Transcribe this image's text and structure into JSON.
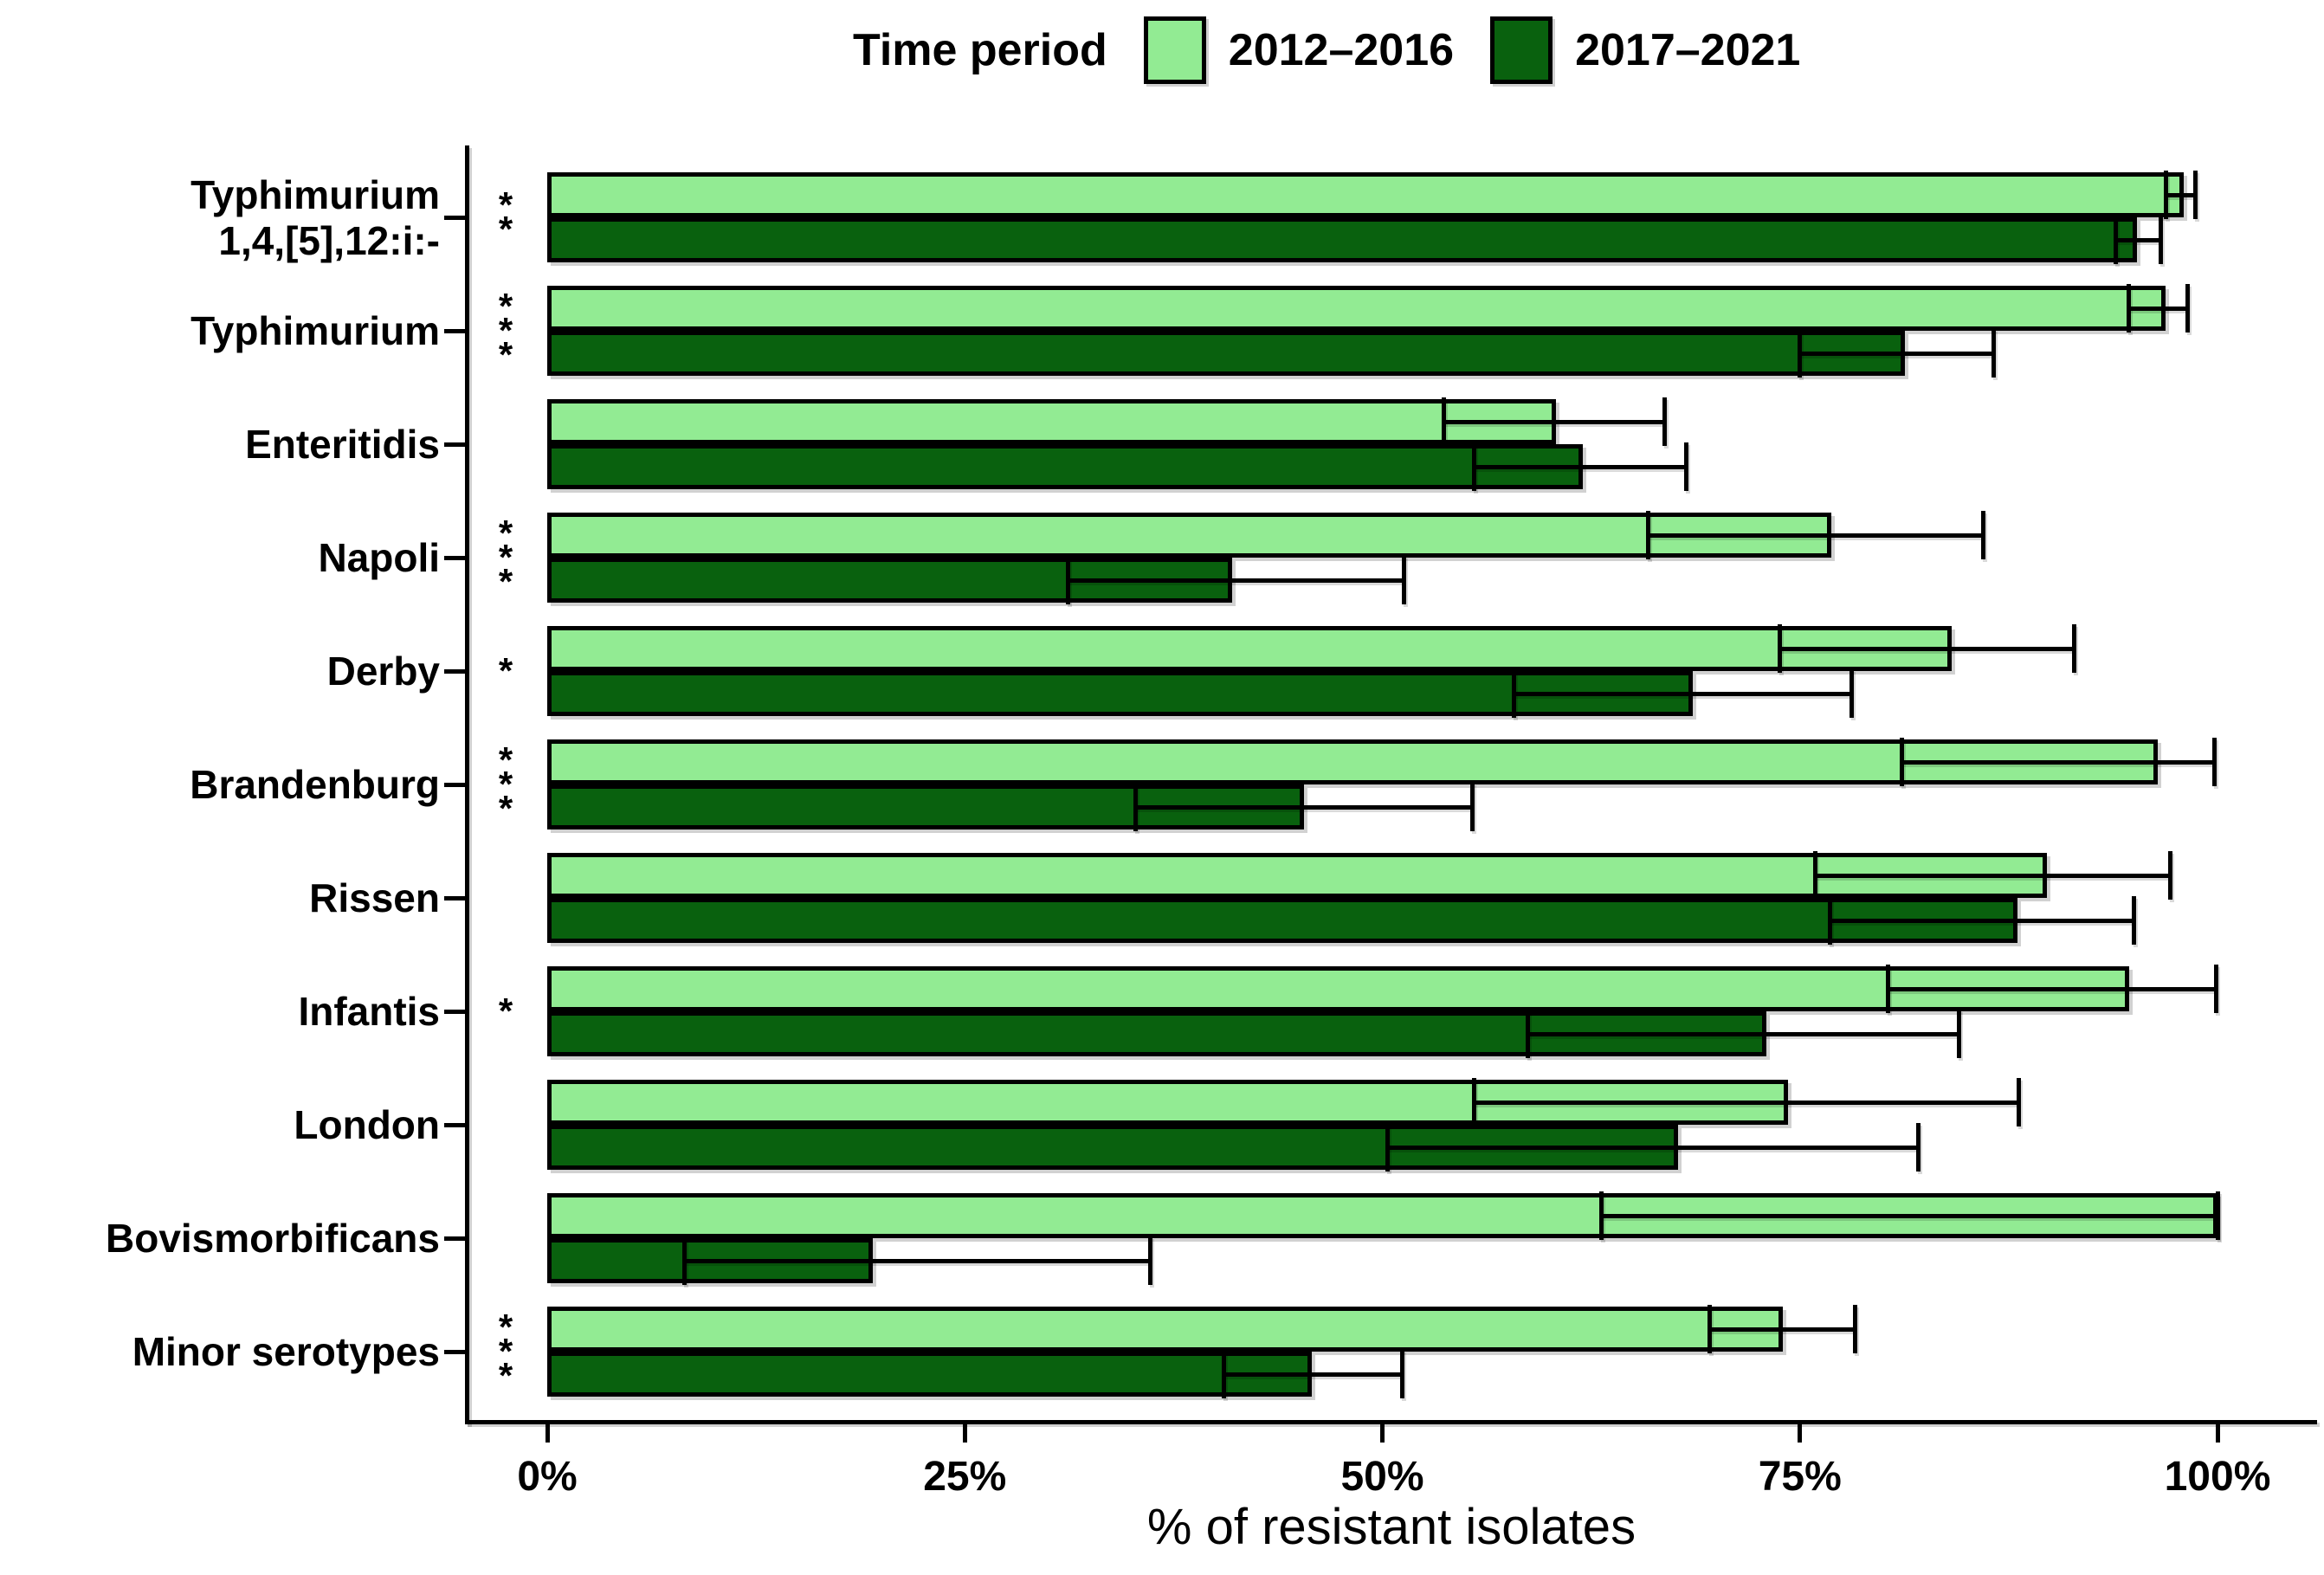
{
  "chart_data": {
    "type": "bar",
    "orientation": "horizontal",
    "legend_title": "Time period",
    "xlabel": "% of resistant isolates",
    "xlim": [
      0,
      100
    ],
    "x_ticks": [
      "0%",
      "25%",
      "50%",
      "75%",
      "100%"
    ],
    "x_tick_values": [
      0,
      25,
      50,
      75,
      100
    ],
    "grid": false,
    "legend_position": "top",
    "categories": [
      {
        "label": "Typhimurium\n1,4,[5],12:i:-",
        "significance": "**"
      },
      {
        "label": "Typhimurium",
        "significance": "***"
      },
      {
        "label": "Enteritidis",
        "significance": ""
      },
      {
        "label": "Napoli",
        "significance": "***"
      },
      {
        "label": "Derby",
        "significance": "*"
      },
      {
        "label": "Brandenburg",
        "significance": "***"
      },
      {
        "label": "Rissen",
        "significance": ""
      },
      {
        "label": "Infantis",
        "significance": "*"
      },
      {
        "label": "London",
        "significance": ""
      },
      {
        "label": "Bovismorbificans",
        "significance": ""
      },
      {
        "label": "Minor serotypes",
        "significance": "***"
      }
    ],
    "series": [
      {
        "name": "2012–2016",
        "color": "#92eb93",
        "values": [
          98.0,
          96.9,
          60.4,
          76.9,
          84.1,
          96.4,
          89.8,
          94.7,
          74.3,
          100.0,
          74.0
        ],
        "ci_low": [
          96.9,
          94.7,
          53.7,
          65.9,
          73.8,
          81.1,
          75.9,
          80.3,
          55.5,
          63.1,
          69.6
        ],
        "ci_high": [
          98.7,
          98.2,
          66.9,
          86.0,
          91.4,
          99.8,
          97.2,
          99.9,
          88.1,
          100.0,
          78.3
        ]
      },
      {
        "name": "2017–2021",
        "color": "#09610e",
        "values": [
          95.2,
          81.3,
          62.0,
          41.0,
          68.6,
          45.3,
          88.0,
          73.0,
          67.7,
          19.5,
          45.8
        ],
        "ci_low": [
          93.9,
          75.0,
          55.5,
          31.2,
          57.9,
          35.2,
          76.8,
          58.7,
          50.3,
          8.2,
          40.5
        ],
        "ci_high": [
          96.6,
          86.6,
          68.2,
          51.3,
          78.1,
          55.4,
          95.0,
          84.5,
          82.1,
          36.1,
          51.2
        ]
      }
    ],
    "colors": {
      "bar_border": "#000000",
      "error_bar": "#000000",
      "axis": "#000000",
      "text": "#000000",
      "background": "#ffffff"
    }
  }
}
